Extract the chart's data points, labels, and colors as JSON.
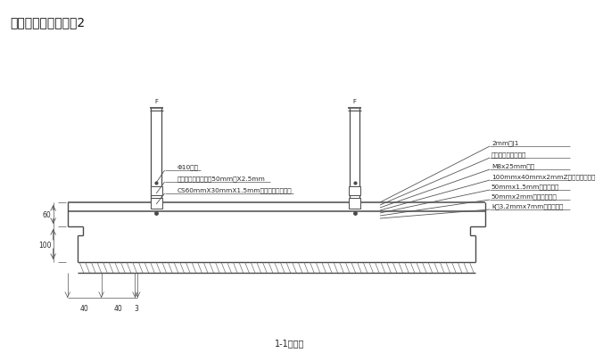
{
  "title": "吊顶蜂窝铝板示意图2",
  "subtitle": "1-1剖面图",
  "bg_color": "#ffffff",
  "line_color": "#4a4a4a",
  "text_color": "#2a2a2a",
  "left_labels": [
    "Φ10吊杆",
    "不锈钢主龙骨吊挂件50mm宽X2.5mm",
    "CS60mmX30mmX1.5mm冷轧热镀锌主龙骨"
  ],
  "right_labels": [
    "2mm厚J1",
    "形热镀锌钢质连接件",
    "M8x25mm螺栓",
    "100mmx40mmx2mmZ形热镀锌钢龙骨",
    "50mmx1.5mm不锈钢弹片",
    "50mmx2mm不锈钢连接件",
    "k形3.2mmx7mm抽芯铝铆钉"
  ],
  "dim_left_vals": [
    "60",
    "100"
  ],
  "dim_bottom_vals": [
    "40",
    "40",
    "3"
  ],
  "fig_w": 6.85,
  "fig_h": 4.06,
  "dpi": 100
}
